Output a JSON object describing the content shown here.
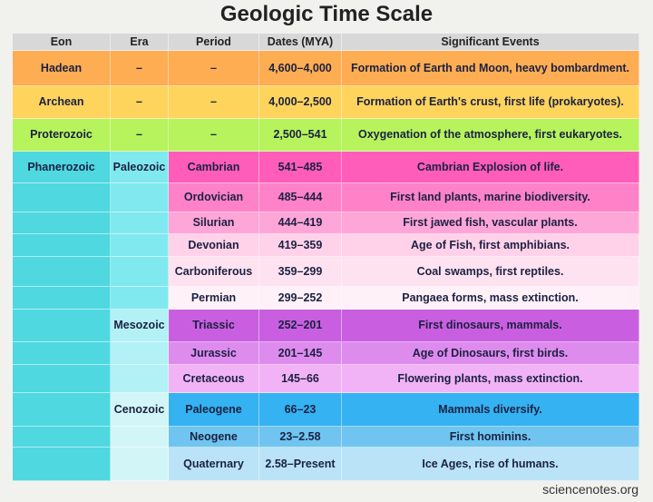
{
  "title": "Geologic Time Scale",
  "headers": [
    "Eon",
    "Era",
    "Period",
    "Dates (MYA)",
    "Significant Events"
  ],
  "rows": [
    {
      "eon": "Hadean",
      "era": "–",
      "period": "–",
      "dates": "4,600–4,000",
      "events": "Formation of Earth and Moon, heavy bombardment.",
      "row_color": "#ffad52",
      "eon_color": "#ffad52",
      "era_color": "#ffad52"
    },
    {
      "eon": "Archean",
      "era": "–",
      "period": "–",
      "dates": "4,000–2,500",
      "events": "Formation of Earth's crust, first life (prokaryotes).",
      "row_color": "#ffd45c",
      "eon_color": "#ffd45c",
      "era_color": "#ffd45c"
    },
    {
      "eon": "Proterozoic",
      "era": "–",
      "period": "–",
      "dates": "2,500–541",
      "events": "Oxygenation of the atmosphere, first eukaryotes.",
      "row_color": "#b6f35c",
      "eon_color": "#b6f35c",
      "era_color": "#b6f35c"
    },
    {
      "eon": "Phanerozoic",
      "era": "Paleozoic",
      "period": "Cambrian",
      "dates": "541–485",
      "events": "Cambrian Explosion of life.",
      "row_color": "#ff5db9",
      "eon_color": "#4fd8e0",
      "era_color": "#80e9ef"
    },
    {
      "eon": "",
      "era": "",
      "period": "Ordovician",
      "dates": "485–444",
      "events": "First land plants, marine biodiversity.",
      "row_color": "#ff82c9",
      "eon_color": "#4fd8e0",
      "era_color": "#80e9ef"
    },
    {
      "eon": "",
      "era": "",
      "period": "Silurian",
      "dates": "444–419",
      "events": "First jawed fish, vascular plants.",
      "row_color": "#ffa6d8",
      "eon_color": "#4fd8e0",
      "era_color": "#80e9ef"
    },
    {
      "eon": "",
      "era": "",
      "period": "Devonian",
      "dates": "419–359",
      "events": "Age of Fish, first amphibians.",
      "row_color": "#ffd2e9",
      "eon_color": "#4fd8e0",
      "era_color": "#80e9ef"
    },
    {
      "eon": "",
      "era": "",
      "period": "Carboniferous",
      "dates": "359–299",
      "events": "Coal swamps, first reptiles.",
      "row_color": "#ffe2f0",
      "eon_color": "#4fd8e0",
      "era_color": "#80e9ef"
    },
    {
      "eon": "",
      "era": "",
      "period": "Permian",
      "dates": "299–252",
      "events": "Pangaea forms, mass extinction.",
      "row_color": "#fff1f7",
      "eon_color": "#4fd8e0",
      "era_color": "#80e9ef"
    },
    {
      "eon": "",
      "era": "Mesozoic",
      "period": "Triassic",
      "dates": "252–201",
      "events": "First dinosaurs, mammals.",
      "row_color": "#c95fe0",
      "eon_color": "#4fd8e0",
      "era_color": "#b2f1f5"
    },
    {
      "eon": "",
      "era": "",
      "period": "Jurassic",
      "dates": "201–145",
      "events": "Age of Dinosaurs, first birds.",
      "row_color": "#de8bee",
      "eon_color": "#4fd8e0",
      "era_color": "#b2f1f5"
    },
    {
      "eon": "",
      "era": "",
      "period": "Cretaceous",
      "dates": "145–66",
      "events": "Flowering plants, mass extinction.",
      "row_color": "#f1b3f6",
      "eon_color": "#4fd8e0",
      "era_color": "#b2f1f5"
    },
    {
      "eon": "",
      "era": "Cenozoic",
      "period": "Paleogene",
      "dates": "66–23",
      "events": "Mammals diversify.",
      "row_color": "#34b2f1",
      "eon_color": "#4fd8e0",
      "era_color": "#d2f6f8"
    },
    {
      "eon": "",
      "era": "",
      "period": "Neogene",
      "dates": "23–2.58",
      "events": "First hominins.",
      "row_color": "#6fc5ef",
      "eon_color": "#4fd8e0",
      "era_color": "#d2f6f8"
    },
    {
      "eon": "",
      "era": "",
      "period": "Quaternary",
      "dates": "2.58–Present",
      "events": "Ice Ages, rise of humans.",
      "row_color": "#bae3f8",
      "eon_color": "#4fd8e0",
      "era_color": "#d2f6f8"
    }
  ],
  "footer": "sciencenotes.org"
}
